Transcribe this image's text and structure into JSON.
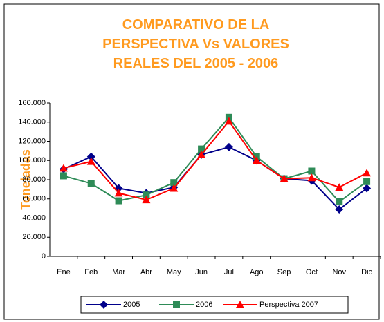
{
  "chart_data": {
    "type": "line",
    "title": "COMPARATIVO DE LA PERSPECTIVA Vs VALORES REALES DEL 2005 - 2006",
    "y_label": "Toneladas",
    "categories": [
      "Ene",
      "Feb",
      "Mar",
      "Abr",
      "May",
      "Jun",
      "Jul",
      "Ago",
      "Sep",
      "Oct",
      "Nov",
      "Dic"
    ],
    "series": [
      {
        "name": "2005",
        "color": "#00008b",
        "marker": "diamond",
        "values": [
          91000,
          104000,
          71000,
          66000,
          72000,
          106000,
          114000,
          100000,
          81000,
          79000,
          49000,
          71000
        ]
      },
      {
        "name": "2006",
        "color": "#2e8b57",
        "marker": "square",
        "values": [
          84000,
          76000,
          58000,
          64000,
          77000,
          112000,
          145000,
          104000,
          81000,
          89000,
          57000,
          78000
        ]
      },
      {
        "name": "Perspectiva 2007",
        "color": "#ff0000",
        "marker": "triangle",
        "values": [
          92000,
          99000,
          66000,
          59000,
          71000,
          106000,
          141000,
          100000,
          81000,
          82000,
          72000,
          87000
        ]
      }
    ],
    "ylim": [
      0,
      160000
    ],
    "yticks": [
      0,
      {
        "value": 20000,
        "label": "20.000"
      },
      {
        "value": 40000,
        "label": "40.000"
      },
      {
        "value": 60000,
        "label": "60.000"
      },
      {
        "value": 80000,
        "label": "80.000"
      },
      {
        "value": 100000,
        "label": "100.000"
      },
      {
        "value": 120000,
        "label": "120.000"
      },
      {
        "value": 140000,
        "label": "140.000"
      },
      {
        "value": 160000,
        "label": "160.000"
      }
    ],
    "legend": "bottom"
  }
}
